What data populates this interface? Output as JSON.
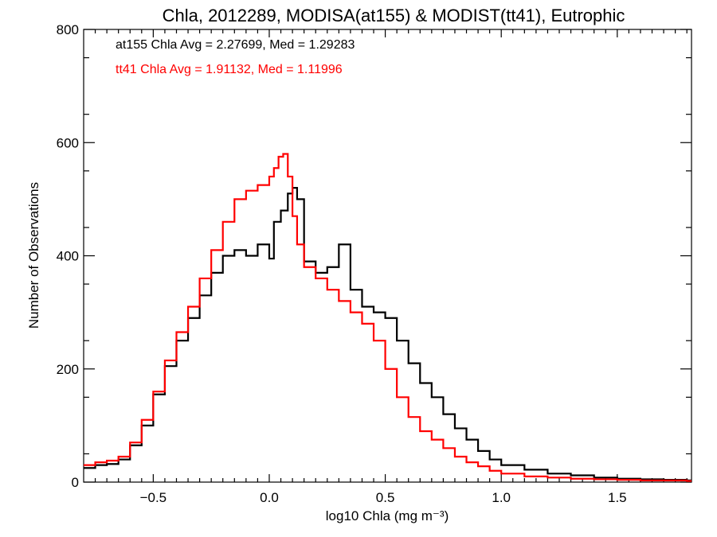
{
  "chart_data": {
    "type": "line",
    "style": "step-histogram",
    "title": "Chla, 2012289, MODISA(at155) & MODIST(tt41), Eutrophic",
    "xlabel": "log10 Chla (mg m⁻³)",
    "ylabel": "Number of Observations",
    "xlim": [
      -0.8,
      1.82
    ],
    "ylim": [
      0,
      800
    ],
    "xticks": [
      -0.5,
      0.0,
      0.5,
      1.0,
      1.5
    ],
    "xtick_labels": [
      "−0.5",
      "0.0",
      "0.5",
      "1.0",
      "1.5"
    ],
    "yticks": [
      0,
      200,
      400,
      600,
      800
    ],
    "ytick_labels": [
      "0",
      "200",
      "400",
      "600",
      "800"
    ],
    "grid": false,
    "annotations": [
      {
        "text": "at155 Chla Avg = 2.27699, Med = 1.29283",
        "color": "#000000"
      },
      {
        "text": "tt41 Chla Avg = 1.91132, Med = 1.11996",
        "color": "#ff0000"
      }
    ],
    "series": [
      {
        "key": "at155",
        "color": "#000000",
        "x": [
          -0.8,
          -0.75,
          -0.7,
          -0.65,
          -0.6,
          -0.55,
          -0.5,
          -0.45,
          -0.4,
          -0.35,
          -0.3,
          -0.25,
          -0.2,
          -0.15,
          -0.1,
          -0.05,
          0.0,
          0.02,
          0.05,
          0.08,
          0.1,
          0.12,
          0.15,
          0.2,
          0.25,
          0.3,
          0.35,
          0.4,
          0.45,
          0.5,
          0.55,
          0.6,
          0.65,
          0.7,
          0.75,
          0.8,
          0.85,
          0.9,
          0.95,
          1.0,
          1.1,
          1.2,
          1.3,
          1.4,
          1.5,
          1.6,
          1.7,
          1.8
        ],
        "values": [
          25,
          30,
          32,
          40,
          65,
          100,
          155,
          205,
          250,
          290,
          330,
          370,
          400,
          410,
          400,
          420,
          395,
          460,
          480,
          510,
          520,
          500,
          390,
          370,
          380,
          420,
          340,
          310,
          300,
          290,
          250,
          210,
          175,
          150,
          120,
          95,
          75,
          55,
          40,
          30,
          22,
          15,
          12,
          8,
          6,
          5,
          4,
          3
        ]
      },
      {
        "key": "tt41",
        "color": "#ff0000",
        "x": [
          -0.8,
          -0.75,
          -0.7,
          -0.65,
          -0.6,
          -0.55,
          -0.5,
          -0.45,
          -0.4,
          -0.35,
          -0.3,
          -0.25,
          -0.2,
          -0.15,
          -0.1,
          -0.05,
          0.0,
          0.02,
          0.04,
          0.06,
          0.08,
          0.1,
          0.12,
          0.15,
          0.2,
          0.25,
          0.3,
          0.35,
          0.4,
          0.45,
          0.5,
          0.55,
          0.6,
          0.65,
          0.7,
          0.75,
          0.8,
          0.85,
          0.9,
          0.95,
          1.0,
          1.1,
          1.2,
          1.3,
          1.4,
          1.5,
          1.6,
          1.7,
          1.8
        ],
        "values": [
          30,
          35,
          38,
          45,
          70,
          110,
          160,
          215,
          265,
          310,
          360,
          410,
          460,
          500,
          515,
          525,
          540,
          555,
          575,
          580,
          540,
          470,
          420,
          380,
          360,
          340,
          320,
          300,
          280,
          250,
          200,
          150,
          115,
          90,
          75,
          60,
          45,
          35,
          28,
          20,
          15,
          10,
          8,
          6,
          5,
          4,
          3,
          3,
          2
        ]
      }
    ]
  }
}
